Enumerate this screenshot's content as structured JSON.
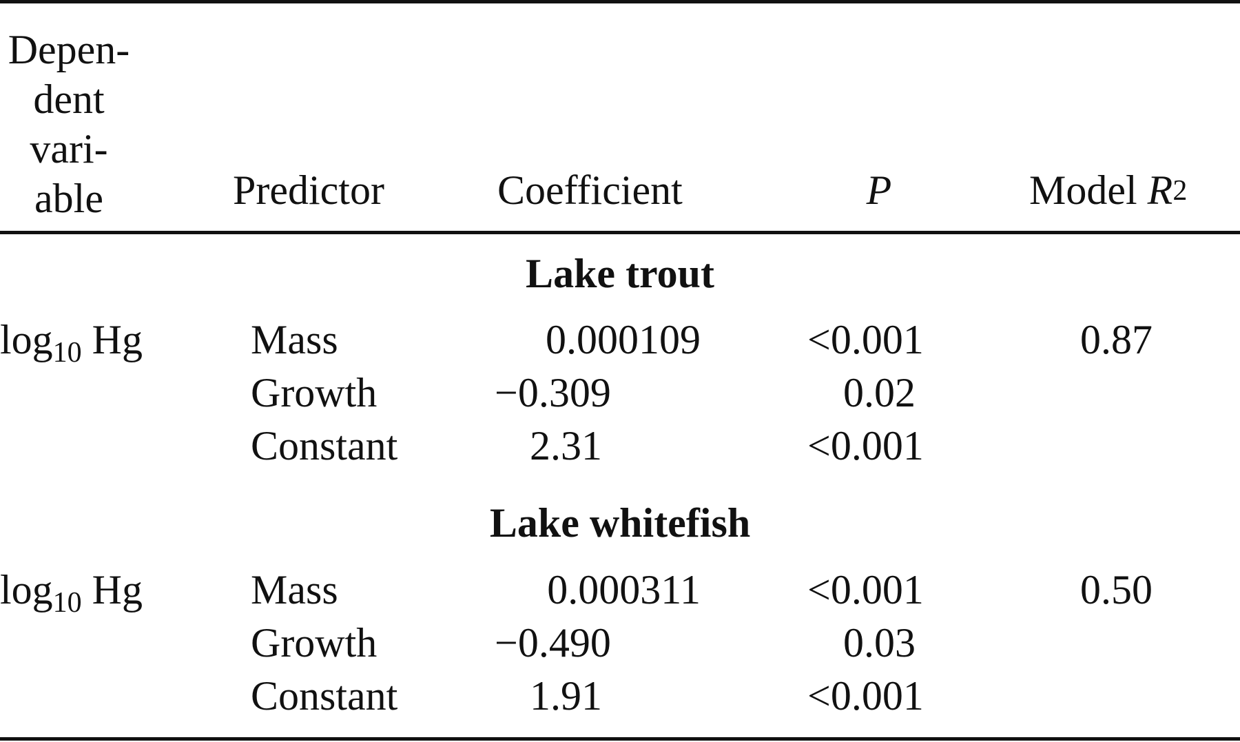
{
  "header": {
    "dependent_variable_lines": [
      "Depen-",
      "dent",
      "vari-",
      "able"
    ],
    "predictor": "Predictor",
    "coefficient": "Coefficient",
    "p": "P",
    "model_r2_prefix": "Model ",
    "model_r2_var": "R",
    "model_r2_sup": "2"
  },
  "sections": [
    {
      "title": "Lake trout",
      "dependent_prefix": "log",
      "dependent_sub": "10",
      "dependent_suffix": " Hg",
      "model_r2": "0.87",
      "rows": [
        {
          "predictor": "Mass",
          "coefficient": "0.000109",
          "p": "<0.001"
        },
        {
          "predictor": "Growth",
          "coefficient": "−0.309",
          "p": "0.02"
        },
        {
          "predictor": "Constant",
          "coefficient": "2.31",
          "p": "<0.001"
        }
      ]
    },
    {
      "title": "Lake whitefish",
      "dependent_prefix": "log",
      "dependent_sub": "10",
      "dependent_suffix": " Hg",
      "model_r2": "0.50",
      "rows": [
        {
          "predictor": "Mass",
          "coefficient": "0.000311",
          "p": "<0.001"
        },
        {
          "predictor": "Growth",
          "coefficient": "−0.490",
          "p": "0.03"
        },
        {
          "predictor": "Constant",
          "coefficient": "1.91",
          "p": "<0.001"
        }
      ]
    }
  ]
}
